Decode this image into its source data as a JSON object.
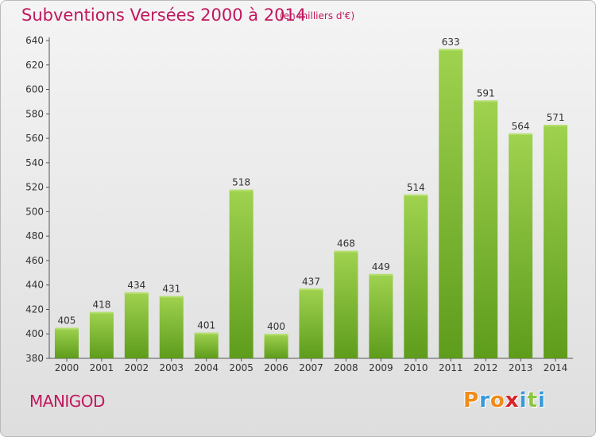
{
  "header": {
    "title": "Subventions Versées 2000 à 2014",
    "unit": "(en milliers d'€)"
  },
  "footer": {
    "commune": "MANIGOD",
    "logo": {
      "letters": [
        "P",
        "r",
        "o",
        "x",
        "i",
        "t",
        "i"
      ],
      "colors": [
        "#f08c1a",
        "#3a9ad9",
        "#f08c1a",
        "#d8222a",
        "#3a9ad9",
        "#8cc63f",
        "#3a9ad9"
      ]
    }
  },
  "colors": {
    "accent": "#c0175d",
    "bar_top": "#9fd24f",
    "bar_bottom": "#5e9c1c"
  },
  "chart_data": {
    "type": "bar",
    "title": "Subventions Versées 2000 à 2014",
    "subtitle": "(en milliers d'€)",
    "categories": [
      "2000",
      "2001",
      "2002",
      "2003",
      "2004",
      "2005",
      "2006",
      "2007",
      "2008",
      "2009",
      "2010",
      "2011",
      "2012",
      "2013",
      "2014"
    ],
    "values": [
      405,
      418,
      434,
      431,
      401,
      518,
      400,
      437,
      468,
      449,
      514,
      633,
      591,
      564,
      571
    ],
    "xlabel": "",
    "ylabel": "",
    "ylim": [
      380,
      640
    ],
    "yticks": [
      380,
      400,
      420,
      440,
      460,
      480,
      500,
      520,
      540,
      560,
      580,
      600,
      620,
      640
    ],
    "grid": false,
    "data_labels": true
  }
}
